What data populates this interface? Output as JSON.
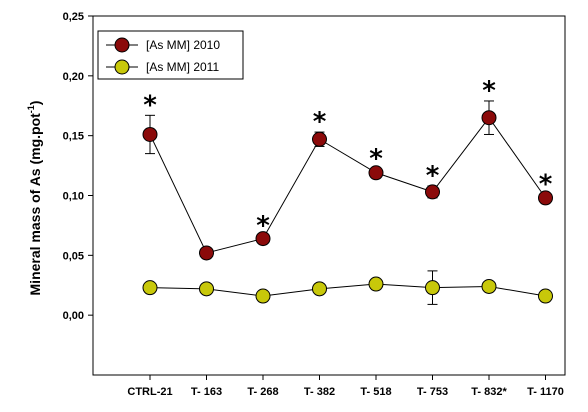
{
  "chart_data": {
    "type": "line",
    "ylabel": "Mineral mass of As (mg.pot",
    "ylabel_superscript": "-1",
    "ylabel_suffix": ")",
    "ylim": [
      -0.05,
      0.25
    ],
    "yticks": [
      "0,00",
      "0,05",
      "0,10",
      "0,15",
      "0,20",
      "0,25"
    ],
    "categories": [
      "CTRL-21",
      "T- 163",
      "T- 268",
      "T- 382",
      "T- 518",
      "T- 753",
      "T- 832*",
      "T- 1170"
    ],
    "series": [
      {
        "name": "[As MM] 2010",
        "color": "#8b0a0a",
        "values": [
          0.151,
          0.052,
          0.064,
          0.147,
          0.119,
          0.103,
          0.165,
          0.098
        ],
        "errors": [
          0.016,
          0.002,
          0.002,
          0.006,
          0.003,
          0.005,
          0.014,
          0.003
        ],
        "significant": [
          true,
          false,
          true,
          true,
          true,
          true,
          true,
          true
        ]
      },
      {
        "name": "[As MM] 2011",
        "color": "#c8c80a",
        "values": [
          0.023,
          0.022,
          0.016,
          0.022,
          0.026,
          0.023,
          0.024,
          0.016
        ],
        "errors": [
          0.002,
          0.002,
          0.002,
          0.002,
          0.002,
          0.014,
          0.002,
          0.002
        ],
        "significant": [
          false,
          false,
          false,
          false,
          false,
          false,
          false,
          false
        ]
      }
    ],
    "significance_marker": "*",
    "legend_position": "top-left",
    "grid": false
  }
}
